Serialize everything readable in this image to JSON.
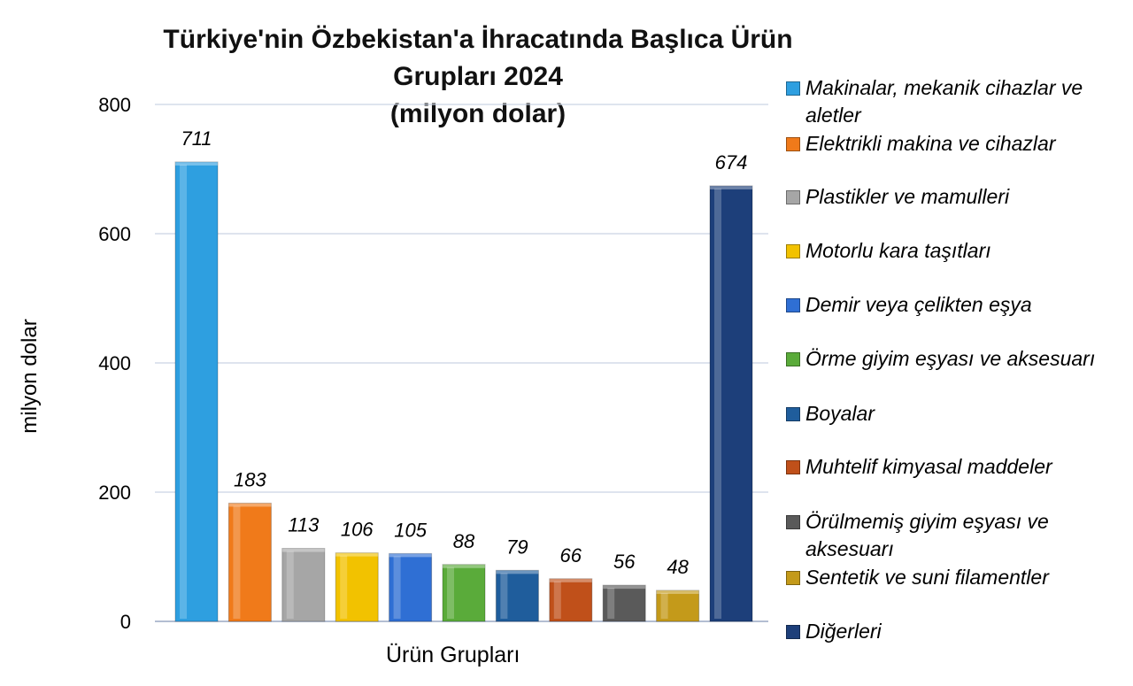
{
  "chart_data": {
    "type": "bar",
    "title": "Türkiye'nin Özbekistan'a İhracatında Başlıca Ürün Grupları 2024",
    "subtitle": "(milyon dolar)",
    "xlabel": "Ürün Grupları",
    "ylabel": "milyon dolar",
    "ylim": [
      0,
      800
    ],
    "yticks": [
      0,
      200,
      400,
      600,
      800
    ],
    "grid": true,
    "legend_position": "right",
    "categories": [
      "Makinalar, mekanik cihazlar ve aletler",
      "Elektrikli makina ve cihazlar",
      "Plastikler ve mamulleri",
      "Motorlu kara taşıtları",
      "Demir veya çelikten eşya",
      "Örme giyim eşyası ve aksesuarı",
      "Boyalar",
      "Muhtelif kimyasal maddeler",
      "Örülmemiş giyim eşyası ve aksesuarı",
      "Sentetik ve suni filamentler",
      "Diğerleri"
    ],
    "values": [
      711,
      183,
      113,
      106,
      105,
      88,
      79,
      66,
      56,
      48,
      674
    ],
    "value_labels": [
      "711",
      "183",
      "113",
      "106",
      "105",
      "88",
      "79",
      "66",
      "56",
      "48",
      "674"
    ],
    "colors": [
      "#2e9fe0",
      "#f07a1a",
      "#a6a6a6",
      "#f2c200",
      "#2f6fd4",
      "#5aab3a",
      "#1f5d9c",
      "#c0501a",
      "#5a5a5a",
      "#c49a1a",
      "#1d3f7a"
    ]
  }
}
